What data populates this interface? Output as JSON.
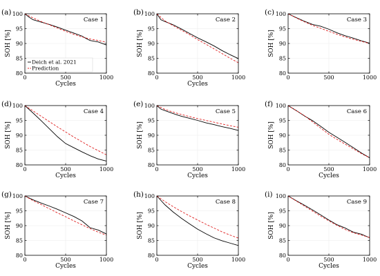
{
  "chart_data": [
    {
      "panel": "(a)",
      "case": "Case 1",
      "type": "line",
      "xlabel": "Cycles",
      "ylabel": "SOH [%]",
      "xlim": [
        0,
        1000
      ],
      "ylim": [
        80,
        100
      ],
      "xticks": [
        "0",
        "500",
        "1000"
      ],
      "yticks": [
        "80",
        "85",
        "90",
        "95",
        "100"
      ],
      "grid": true,
      "legend": {
        "placement": "bottom-left",
        "entries": [
          "Deich et al. 2021",
          "Prediction"
        ]
      },
      "series": [
        {
          "name": "Deich et al. 2021",
          "color": "#000000",
          "dash": "solid",
          "x": [
            0,
            50,
            100,
            150,
            200,
            300,
            400,
            500,
            600,
            700,
            750,
            800,
            900,
            1000
          ],
          "y": [
            100,
            98.9,
            98.0,
            97.6,
            97.2,
            96.4,
            95.5,
            94.5,
            93.5,
            92.5,
            91.7,
            91.0,
            90.5,
            89.5
          ]
        },
        {
          "name": "Prediction",
          "color": "#e02020",
          "dash": "dashed",
          "x": [
            0,
            100,
            200,
            300,
            400,
            500,
            600,
            700,
            800,
            900,
            1000
          ],
          "y": [
            100,
            98.6,
            97.4,
            96.3,
            95.2,
            94.1,
            93.1,
            92.2,
            91.5,
            91.0,
            90.4
          ]
        }
      ]
    },
    {
      "panel": "(b)",
      "case": "Case 2",
      "type": "line",
      "xlabel": "Cycles",
      "ylabel": "SOH [%]",
      "xlim": [
        0,
        1000
      ],
      "ylim": [
        80,
        100
      ],
      "xticks": [
        "0",
        "500",
        "1000"
      ],
      "yticks": [
        "80",
        "85",
        "90",
        "95",
        "100"
      ],
      "grid": true,
      "series": [
        {
          "name": "Deich et al. 2021",
          "color": "#000000",
          "dash": "solid",
          "x": [
            0,
            50,
            100,
            200,
            300,
            400,
            500,
            600,
            700,
            800,
            900,
            1000
          ],
          "y": [
            100,
            98.0,
            97.4,
            96.3,
            94.9,
            93.4,
            91.9,
            90.6,
            89.2,
            87.6,
            86.2,
            84.9
          ]
        },
        {
          "name": "Prediction",
          "color": "#e02020",
          "dash": "dashed",
          "x": [
            0,
            100,
            200,
            300,
            400,
            500,
            600,
            700,
            800,
            900,
            1000
          ],
          "y": [
            100,
            97.6,
            96.0,
            94.5,
            93.0,
            91.3,
            89.8,
            88.2,
            86.6,
            85.0,
            83.5
          ]
        }
      ]
    },
    {
      "panel": "(c)",
      "case": "Case 3",
      "type": "line",
      "xlabel": "",
      "ylabel": "SOH [%]",
      "xlim": [
        0,
        1000
      ],
      "ylim": [
        80,
        100
      ],
      "xticks": [
        "0",
        "500",
        "1000"
      ],
      "yticks": [
        "80",
        "85",
        "90",
        "95",
        "100"
      ],
      "grid": true,
      "series": [
        {
          "name": "Deich et al. 2021",
          "color": "#000000",
          "dash": "solid",
          "x": [
            0,
            100,
            200,
            300,
            400,
            500,
            600,
            700,
            800,
            900,
            1000
          ],
          "y": [
            100,
            98.7,
            97.5,
            96.4,
            95.8,
            94.8,
            93.6,
            92.6,
            91.8,
            90.9,
            90.1
          ]
        },
        {
          "name": "Prediction",
          "color": "#e02020",
          "dash": "dashed",
          "x": [
            0,
            100,
            200,
            300,
            400,
            500,
            600,
            700,
            800,
            900,
            1000
          ],
          "y": [
            100,
            98.6,
            97.3,
            96.1,
            95.1,
            94.1,
            93.1,
            92.2,
            91.4,
            90.7,
            90.0
          ]
        }
      ]
    },
    {
      "panel": "(d)",
      "case": "Case 4",
      "type": "line",
      "xlabel": "Cycles",
      "ylabel": "SOH [%]",
      "xlim": [
        0,
        1000
      ],
      "ylim": [
        80,
        100
      ],
      "xticks": [
        "0",
        "500",
        "1000"
      ],
      "yticks": [
        "80",
        "85",
        "90",
        "95",
        "100"
      ],
      "grid": true,
      "series": [
        {
          "name": "Deich et al. 2021",
          "color": "#000000",
          "dash": "solid",
          "x": [
            0,
            100,
            200,
            300,
            400,
            500,
            600,
            700,
            800,
            900,
            1000
          ],
          "y": [
            100,
            97.5,
            94.9,
            92.2,
            89.5,
            87.2,
            85.8,
            84.4,
            83.1,
            82.0,
            81.3
          ]
        },
        {
          "name": "Prediction",
          "color": "#e02020",
          "dash": "dashed",
          "x": [
            0,
            100,
            200,
            300,
            400,
            500,
            600,
            700,
            800,
            900,
            1000
          ],
          "y": [
            100,
            98.2,
            96.4,
            94.6,
            92.8,
            91.1,
            89.4,
            87.8,
            86.2,
            84.8,
            83.4
          ]
        }
      ]
    },
    {
      "panel": "(e)",
      "case": "Case 5",
      "type": "line",
      "xlabel": "Cycles",
      "ylabel": "SOH [%]",
      "xlim": [
        0,
        1000
      ],
      "ylim": [
        80,
        100
      ],
      "xticks": [
        "0",
        "500",
        "1000"
      ],
      "yticks": [
        "80",
        "85",
        "90",
        "95",
        "100"
      ],
      "grid": true,
      "series": [
        {
          "name": "Deich et al. 2021",
          "color": "#000000",
          "dash": "solid",
          "x": [
            0,
            50,
            100,
            200,
            300,
            400,
            500,
            600,
            700,
            800,
            900,
            1000
          ],
          "y": [
            100,
            98.8,
            98.3,
            97.3,
            96.4,
            95.7,
            95.0,
            94.2,
            93.6,
            92.9,
            92.3,
            91.6
          ]
        },
        {
          "name": "Prediction",
          "color": "#e02020",
          "dash": "dashed",
          "x": [
            0,
            100,
            200,
            300,
            400,
            500,
            600,
            700,
            800,
            900,
            1000
          ],
          "y": [
            100,
            98.7,
            97.8,
            97.0,
            96.3,
            95.6,
            95.0,
            94.4,
            93.8,
            93.2,
            92.7
          ]
        }
      ]
    },
    {
      "panel": "(f)",
      "case": "Case 6",
      "type": "line",
      "xlabel": "Cycles",
      "ylabel": "SOH [%]",
      "xlim": [
        0,
        1000
      ],
      "ylim": [
        80,
        100
      ],
      "xticks": [
        "0",
        "500",
        "1000"
      ],
      "yticks": [
        "80",
        "85",
        "90",
        "95",
        "100"
      ],
      "grid": true,
      "series": [
        {
          "name": "Deich et al. 2021",
          "color": "#000000",
          "dash": "solid",
          "x": [
            0,
            100,
            200,
            300,
            400,
            500,
            600,
            700,
            800,
            900,
            1000
          ],
          "y": [
            100,
            98.3,
            96.5,
            94.9,
            93.0,
            91.0,
            89.3,
            87.6,
            85.8,
            84.0,
            82.4
          ]
        },
        {
          "name": "Prediction",
          "color": "#e02020",
          "dash": "dashed",
          "x": [
            0,
            100,
            200,
            300,
            400,
            500,
            600,
            700,
            800,
            900,
            1000
          ],
          "y": [
            100,
            98.3,
            96.6,
            94.5,
            92.4,
            90.3,
            88.6,
            87.0,
            85.4,
            83.8,
            82.4
          ]
        }
      ]
    },
    {
      "panel": "(g)",
      "case": "Case 7",
      "type": "line",
      "xlabel": "Cycles",
      "ylabel": "SOH [%]",
      "xlim": [
        0,
        1000
      ],
      "ylim": [
        80,
        100
      ],
      "xticks": [
        "0",
        "500",
        "1000"
      ],
      "yticks": [
        "80",
        "85",
        "90",
        "95",
        "100"
      ],
      "grid": true,
      "series": [
        {
          "name": "Deich et al. 2021",
          "color": "#000000",
          "dash": "solid",
          "x": [
            0,
            100,
            200,
            300,
            400,
            500,
            600,
            700,
            800,
            900,
            1000
          ],
          "y": [
            100,
            98.7,
            97.6,
            96.6,
            95.5,
            94.3,
            93.1,
            91.6,
            89.3,
            88.5,
            87.2
          ]
        },
        {
          "name": "Prediction",
          "color": "#e02020",
          "dash": "dashed",
          "x": [
            0,
            100,
            200,
            300,
            400,
            500,
            600,
            700,
            800,
            900,
            1000
          ],
          "y": [
            100,
            98.4,
            97.1,
            95.7,
            94.3,
            93.0,
            91.6,
            90.3,
            89.0,
            87.8,
            86.8
          ]
        }
      ]
    },
    {
      "panel": "(h)",
      "case": "Case 8",
      "type": "line",
      "xlabel": "Cycles",
      "ylabel": "SOH [%]",
      "xlim": [
        0,
        1000
      ],
      "ylim": [
        80,
        100
      ],
      "xticks": [
        "0",
        "500",
        "1000"
      ],
      "yticks": [
        "80",
        "85",
        "90",
        "95",
        "100"
      ],
      "grid": true,
      "series": [
        {
          "name": "Deich et al. 2021",
          "color": "#000000",
          "dash": "solid",
          "x": [
            0,
            100,
            200,
            300,
            400,
            500,
            600,
            700,
            800,
            900,
            1000
          ],
          "y": [
            100,
            97.0,
            94.6,
            92.5,
            90.6,
            88.8,
            87.3,
            85.9,
            84.9,
            84.1,
            83.3
          ]
        },
        {
          "name": "Prediction",
          "color": "#e02020",
          "dash": "dashed",
          "x": [
            0,
            100,
            200,
            300,
            400,
            500,
            600,
            700,
            800,
            900,
            1000
          ],
          "y": [
            100,
            98.1,
            96.4,
            94.8,
            93.3,
            91.9,
            90.5,
            89.2,
            87.9,
            86.8,
            85.8
          ]
        }
      ]
    },
    {
      "panel": "(i)",
      "case": "Case 9",
      "type": "line",
      "xlabel": "Cycles",
      "ylabel": "SOH [%]",
      "xlim": [
        0,
        1000
      ],
      "ylim": [
        80,
        100
      ],
      "xticks": [
        "0",
        "500",
        "1000"
      ],
      "yticks": [
        "80",
        "85",
        "90",
        "95",
        "100"
      ],
      "grid": true,
      "series": [
        {
          "name": "Deich et al. 2021",
          "color": "#000000",
          "dash": "solid",
          "x": [
            0,
            100,
            200,
            300,
            400,
            500,
            600,
            700,
            800,
            900,
            1000
          ],
          "y": [
            100,
            98.4,
            96.9,
            95.3,
            93.6,
            91.9,
            90.3,
            89.2,
            87.8,
            87.1,
            85.9
          ]
        },
        {
          "name": "Prediction",
          "color": "#e02020",
          "dash": "dashed",
          "x": [
            0,
            100,
            200,
            300,
            400,
            500,
            600,
            700,
            800,
            900,
            1000
          ],
          "y": [
            100,
            98.3,
            96.6,
            94.9,
            93.2,
            91.6,
            90.1,
            88.7,
            87.6,
            86.8,
            86.0
          ]
        }
      ]
    }
  ]
}
